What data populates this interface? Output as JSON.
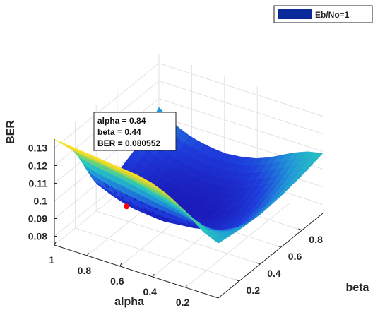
{
  "chart_data": {
    "type": "surface",
    "xlabel": "alpha",
    "ylabel": "beta",
    "zlabel": "BER",
    "x_ticks": [
      "1",
      "0.8",
      "0.6",
      "0.4",
      "0.2"
    ],
    "y_ticks": [
      "0.2",
      "0.4",
      "0.6",
      "0.8"
    ],
    "z_ticks": [
      "0.08",
      "0.09",
      "0.1",
      "0.11",
      "0.12",
      "0.13"
    ],
    "xlim": [
      0,
      1
    ],
    "ylim": [
      0,
      1
    ],
    "zlim": [
      0.075,
      0.135
    ],
    "grid": true,
    "legend_position": "top-right",
    "series": [
      {
        "name": "Eb/No=1",
        "alpha_samples": [
          0.0,
          0.1,
          0.2,
          0.3,
          0.4,
          0.5,
          0.6,
          0.7,
          0.8,
          0.9,
          1.0
        ],
        "beta_samples": [
          0.0,
          0.2,
          0.4,
          0.6,
          0.8,
          1.0
        ],
        "z": [
          [
            0.106,
            0.104,
            0.103,
            0.104,
            0.106,
            0.109
          ],
          [
            0.11,
            0.1,
            0.094,
            0.096,
            0.101,
            0.107
          ],
          [
            0.118,
            0.098,
            0.088,
            0.089,
            0.094,
            0.103
          ],
          [
            0.124,
            0.101,
            0.085,
            0.084,
            0.089,
            0.098
          ],
          [
            0.128,
            0.105,
            0.083,
            0.081,
            0.085,
            0.094
          ],
          [
            0.13,
            0.108,
            0.082,
            0.08,
            0.083,
            0.092
          ],
          [
            0.131,
            0.111,
            0.081,
            0.08,
            0.083,
            0.091
          ],
          [
            0.132,
            0.113,
            0.082,
            0.08,
            0.083,
            0.092
          ],
          [
            0.133,
            0.115,
            0.083,
            0.081,
            0.085,
            0.094
          ],
          [
            0.134,
            0.116,
            0.086,
            0.083,
            0.088,
            0.098
          ],
          [
            0.135,
            0.118,
            0.09,
            0.087,
            0.093,
            0.105
          ]
        ]
      }
    ],
    "datatip": {
      "alpha": 0.84,
      "beta": 0.44,
      "ber": 0.080552,
      "lines": [
        "alpha = 0.84",
        "beta = 0.44",
        "BER = 0.080552"
      ]
    },
    "colors": {
      "surface_low": "#1a1ab8",
      "surface_mid": "#20c0c8",
      "surface_high": "#f5e820",
      "marker": "#ff0000",
      "legend_swatch": "#0a2a9a"
    }
  }
}
